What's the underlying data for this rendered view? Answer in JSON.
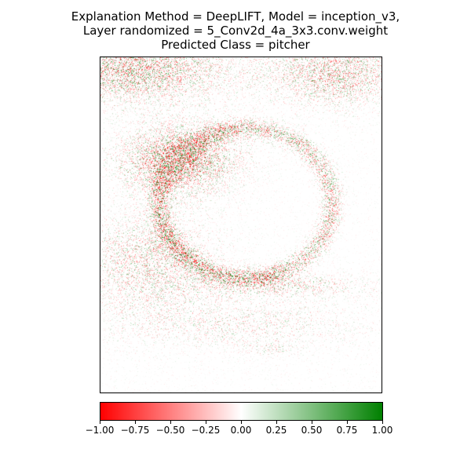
{
  "title": {
    "line1": "Explanation Method = DeepLIFT, Model = inception_v3,",
    "line2": "Layer randomized = 5_Conv2d_4a_3x3.conv.weight",
    "line3": "Predicted Class = pitcher"
  },
  "chart_data": {
    "type": "heatmap",
    "title": "Explanation Method = DeepLIFT, Model = inception_v3, Layer randomized = 5_Conv2d_4a_3x3.conv.weight, Predicted Class = pitcher",
    "xlabel": "",
    "ylabel": "",
    "axes_ticks_visible": false,
    "colormap": {
      "min_color": "#ff0000",
      "mid_color": "#ffffff",
      "max_color": "#008000"
    },
    "colorbar": {
      "orientation": "horizontal",
      "placement": "bottom",
      "range": [
        -1.0,
        1.0
      ],
      "ticks": [
        -1.0,
        -0.75,
        -0.5,
        -0.25,
        0.0,
        0.25,
        0.5,
        0.75,
        1.0
      ],
      "tick_labels": [
        "−1.00",
        "−0.75",
        "−0.50",
        "−0.25",
        "0.00",
        "0.25",
        "0.50",
        "0.75",
        "1.00"
      ]
    }
  }
}
